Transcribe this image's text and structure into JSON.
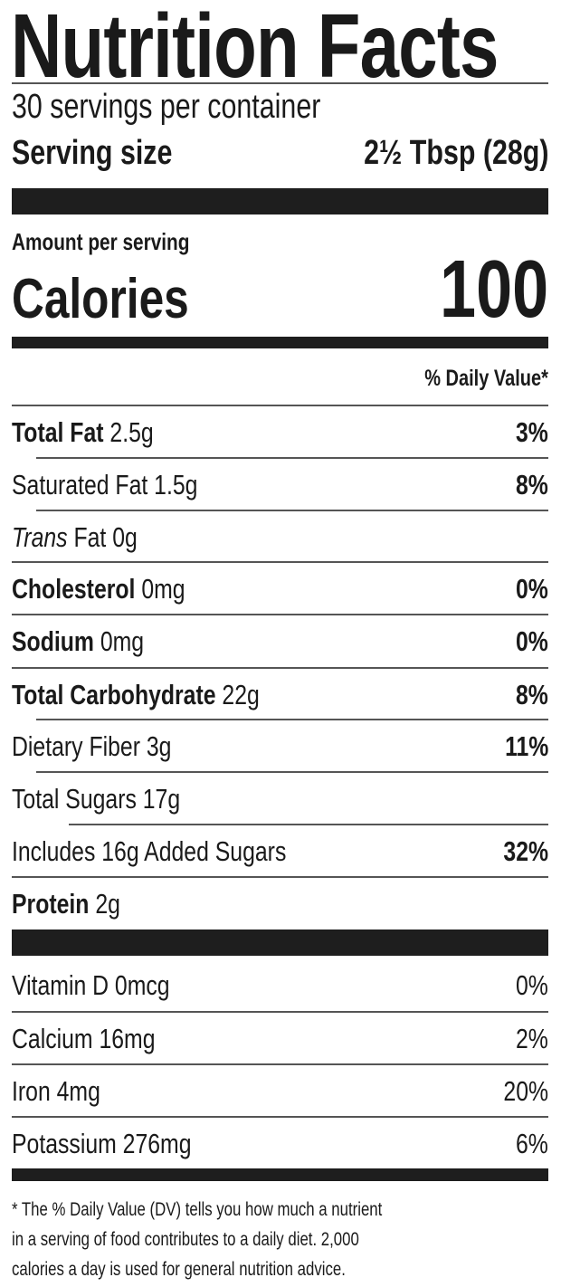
{
  "title": "Nutrition Facts",
  "servings_per_container": "30 servings per container",
  "serving_size_label": "Serving size",
  "serving_size_value": "2½ Tbsp (28g)",
  "amount_per_serving": "Amount per serving",
  "calories_label": "Calories",
  "calories_value": "100",
  "daily_value_header": "% Daily Value*",
  "nutrients": [
    {
      "name": "Total Fat",
      "amount": "2.5g",
      "dv": "3%"
    },
    {
      "name": "Saturated Fat",
      "amount": "1.5g",
      "dv": "8%"
    },
    {
      "name_italic": "Trans",
      "name": "Fat",
      "amount": "0g",
      "dv": ""
    },
    {
      "name": "Cholesterol",
      "amount": "0mg",
      "dv": "0%"
    },
    {
      "name": "Sodium",
      "amount": "0mg",
      "dv": "0%"
    },
    {
      "name": "Total Carbohydrate",
      "amount": "22g",
      "dv": "8%"
    },
    {
      "name": "Dietary Fiber",
      "amount": "3g",
      "dv": "11%"
    },
    {
      "name": "Total Sugars",
      "amount": "17g",
      "dv": ""
    },
    {
      "text": "Includes 16g Added Sugars",
      "dv": "32%"
    },
    {
      "name": "Protein",
      "amount": "2g",
      "dv": ""
    }
  ],
  "vitamins": [
    {
      "text": "Vitamin D 0mcg",
      "dv": "0%"
    },
    {
      "text": "Calcium 16mg",
      "dv": "2%"
    },
    {
      "text": "Iron 4mg",
      "dv": "20%"
    },
    {
      "text": "Potassium 276mg",
      "dv": "6%"
    }
  ],
  "footnote": [
    "* The % Daily Value (DV) tells you how much a nutrient",
    "in a serving of food contributes to a daily diet. 2,000",
    "calories a day is used for general nutrition advice."
  ]
}
